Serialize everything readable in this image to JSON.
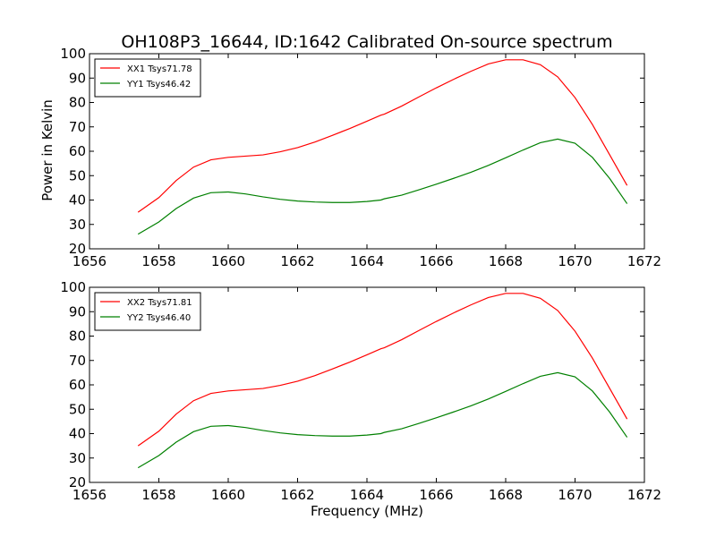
{
  "title": "OH108P3_16644, ID:1642 Calibrated On-source spectrum",
  "xlabel": "Frequency (MHz)",
  "ylabel": "Power in Kelvin",
  "chart_data": [
    {
      "type": "line",
      "title": "OH108P3_16644, ID:1642 Calibrated On-source spectrum",
      "xlabel": "",
      "ylabel": "Power in Kelvin",
      "xlim": [
        1656,
        1672
      ],
      "ylim": [
        20,
        100
      ],
      "xticks": [
        1656,
        1658,
        1660,
        1662,
        1664,
        1666,
        1668,
        1670,
        1672
      ],
      "yticks": [
        20,
        30,
        40,
        50,
        60,
        70,
        80,
        90,
        100
      ],
      "legend": "top-left",
      "grid": false,
      "series": [
        {
          "name": "XX1 Tsys71.78",
          "color": "#ff0000",
          "x": [
            1657.4,
            1658.0,
            1658.5,
            1659.0,
            1659.5,
            1660.0,
            1660.5,
            1661.0,
            1661.5,
            1662.0,
            1662.5,
            1663.0,
            1663.5,
            1664.0,
            1664.4,
            1664.5,
            1665.0,
            1665.5,
            1666.0,
            1666.5,
            1667.0,
            1667.5,
            1668.0,
            1668.5,
            1669.0,
            1669.5,
            1670.0,
            1670.5,
            1671.0,
            1671.5
          ],
          "y": [
            35.0,
            41.0,
            48.0,
            53.5,
            56.5,
            57.5,
            58.0,
            58.5,
            59.8,
            61.5,
            63.8,
            66.5,
            69.3,
            72.3,
            74.8,
            75.2,
            78.5,
            82.3,
            86.0,
            89.5,
            92.8,
            95.8,
            97.5,
            97.5,
            95.5,
            90.5,
            82.0,
            71.0,
            58.5,
            46.0
          ]
        },
        {
          "name": "YY1 Tsys46.42",
          "color": "#008000",
          "x": [
            1657.4,
            1658.0,
            1658.5,
            1659.0,
            1659.5,
            1660.0,
            1660.5,
            1661.0,
            1661.5,
            1662.0,
            1662.5,
            1663.0,
            1663.5,
            1664.0,
            1664.4,
            1664.5,
            1665.0,
            1665.5,
            1666.0,
            1666.5,
            1667.0,
            1667.5,
            1668.0,
            1668.5,
            1669.0,
            1669.5,
            1670.0,
            1670.5,
            1671.0,
            1671.5
          ],
          "y": [
            26.0,
            31.0,
            36.5,
            40.8,
            43.0,
            43.3,
            42.5,
            41.3,
            40.3,
            39.6,
            39.2,
            39.0,
            39.0,
            39.4,
            40.0,
            40.5,
            42.0,
            44.2,
            46.5,
            48.9,
            51.4,
            54.2,
            57.3,
            60.5,
            63.5,
            65.0,
            63.3,
            57.5,
            48.8,
            38.5
          ]
        }
      ]
    },
    {
      "type": "line",
      "title": "",
      "xlabel": "Frequency (MHz)",
      "ylabel": "",
      "xlim": [
        1656,
        1672
      ],
      "ylim": [
        20,
        100
      ],
      "xticks": [
        1656,
        1658,
        1660,
        1662,
        1664,
        1666,
        1668,
        1670,
        1672
      ],
      "yticks": [
        20,
        30,
        40,
        50,
        60,
        70,
        80,
        90,
        100
      ],
      "legend": "top-left",
      "grid": false,
      "series": [
        {
          "name": "XX2 Tsys71.81",
          "color": "#ff0000",
          "x": [
            1657.4,
            1658.0,
            1658.5,
            1659.0,
            1659.5,
            1660.0,
            1660.5,
            1661.0,
            1661.5,
            1662.0,
            1662.5,
            1663.0,
            1663.5,
            1664.0,
            1664.4,
            1664.5,
            1665.0,
            1665.5,
            1666.0,
            1666.5,
            1667.0,
            1667.5,
            1668.0,
            1668.5,
            1669.0,
            1669.5,
            1670.0,
            1670.5,
            1671.0,
            1671.5
          ],
          "y": [
            35.0,
            41.0,
            48.0,
            53.5,
            56.5,
            57.5,
            58.0,
            58.5,
            59.8,
            61.5,
            63.8,
            66.5,
            69.3,
            72.3,
            74.8,
            75.2,
            78.5,
            82.3,
            86.0,
            89.5,
            92.8,
            95.8,
            97.5,
            97.5,
            95.5,
            90.5,
            82.0,
            71.0,
            58.5,
            46.0
          ]
        },
        {
          "name": "YY2 Tsys46.40",
          "color": "#008000",
          "x": [
            1657.4,
            1658.0,
            1658.5,
            1659.0,
            1659.5,
            1660.0,
            1660.5,
            1661.0,
            1661.5,
            1662.0,
            1662.5,
            1663.0,
            1663.5,
            1664.0,
            1664.4,
            1664.5,
            1665.0,
            1665.5,
            1666.0,
            1666.5,
            1667.0,
            1667.5,
            1668.0,
            1668.5,
            1669.0,
            1669.5,
            1670.0,
            1670.5,
            1671.0,
            1671.5
          ],
          "y": [
            26.0,
            31.0,
            36.5,
            40.8,
            43.0,
            43.3,
            42.5,
            41.3,
            40.3,
            39.6,
            39.2,
            39.0,
            39.0,
            39.4,
            40.0,
            40.5,
            42.0,
            44.2,
            46.5,
            48.9,
            51.4,
            54.2,
            57.3,
            60.5,
            63.5,
            65.0,
            63.3,
            57.5,
            48.8,
            38.5
          ]
        }
      ]
    }
  ]
}
